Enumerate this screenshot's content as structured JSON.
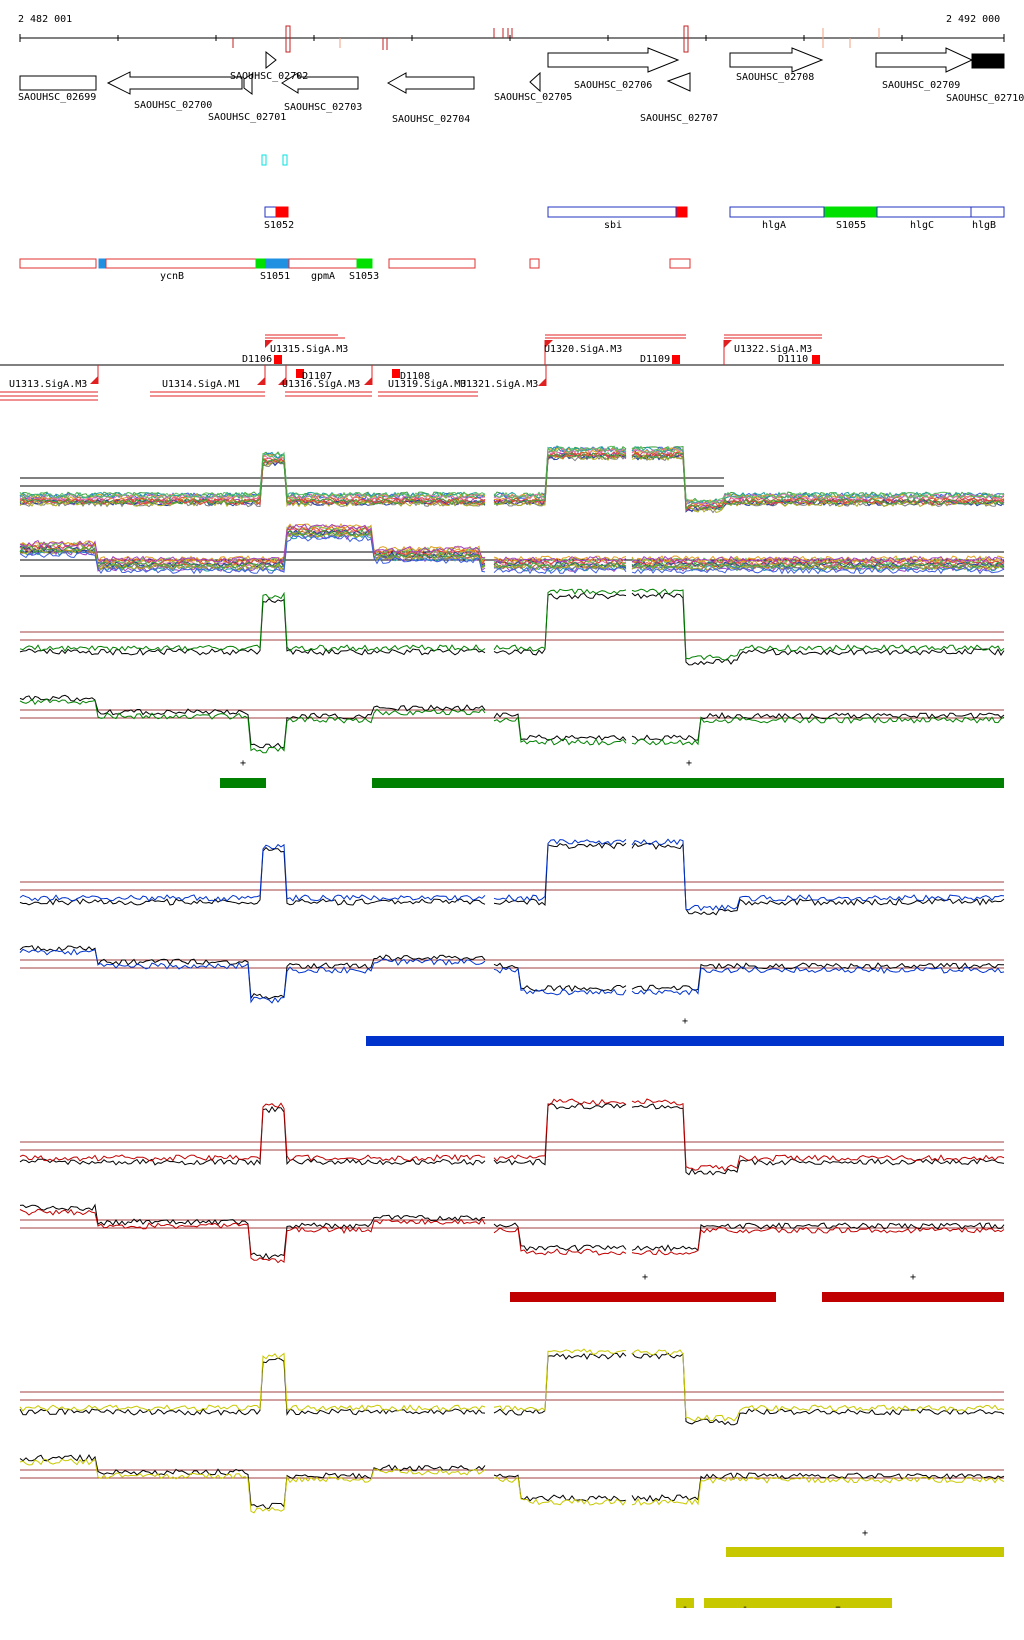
{
  "coordinates": {
    "start": "2 482 001",
    "end": "2 492 000"
  },
  "genes": [
    {
      "id": "SAOUHSC_02699"
    },
    {
      "id": "SAOUHSC_02700"
    },
    {
      "id": "SAOUHSC_02701"
    },
    {
      "id": "SAOUHSC_02702"
    },
    {
      "id": "SAOUHSC_02703"
    },
    {
      "id": "SAOUHSC_02704"
    },
    {
      "id": "SAOUHSC_02705"
    },
    {
      "id": "SAOUHSC_02706"
    },
    {
      "id": "SAOUHSC_02707"
    },
    {
      "id": "SAOUHSC_02708"
    },
    {
      "id": "SAOUHSC_02709"
    },
    {
      "id": "SAOUHSC_02710"
    }
  ],
  "annotations_row1": [
    {
      "label": "S1052"
    },
    {
      "label": "sbi"
    },
    {
      "label": "hlgA"
    },
    {
      "label": "S1055"
    },
    {
      "label": "hlgC"
    },
    {
      "label": "hlgB"
    }
  ],
  "annotations_row2": [
    {
      "label": "ycnB"
    },
    {
      "label": "S1051"
    },
    {
      "label": "gpmA"
    },
    {
      "label": "S1053"
    }
  ],
  "transcription_units": [
    {
      "label": "U1313.SigA.M3"
    },
    {
      "label": "U1314.SigA.M1"
    },
    {
      "label": "U1315.SigA.M3"
    },
    {
      "label": "U1316.SigA.M3"
    },
    {
      "label": "U1319.SigA.M3"
    },
    {
      "label": "U1320.SigA.M3"
    },
    {
      "label": "U1321.SigA.M3"
    },
    {
      "label": "U1322.SigA.M3"
    }
  ],
  "terminators": [
    {
      "label": "D1106"
    },
    {
      "label": "D1107"
    },
    {
      "label": "D1108"
    },
    {
      "label": "D1109"
    },
    {
      "label": "D1110"
    }
  ],
  "condition_panels": [
    {
      "color": "#008000",
      "bar_marks": [
        "+",
        "+"
      ]
    },
    {
      "color": "#0033cc",
      "bar_marks": [
        "+"
      ]
    },
    {
      "color": "#c00000",
      "bar_marks": [
        "+",
        "+"
      ]
    },
    {
      "color": "#c8c800",
      "bar_marks": [
        "+",
        "-",
        "-",
        "-",
        "-"
      ]
    }
  ]
}
